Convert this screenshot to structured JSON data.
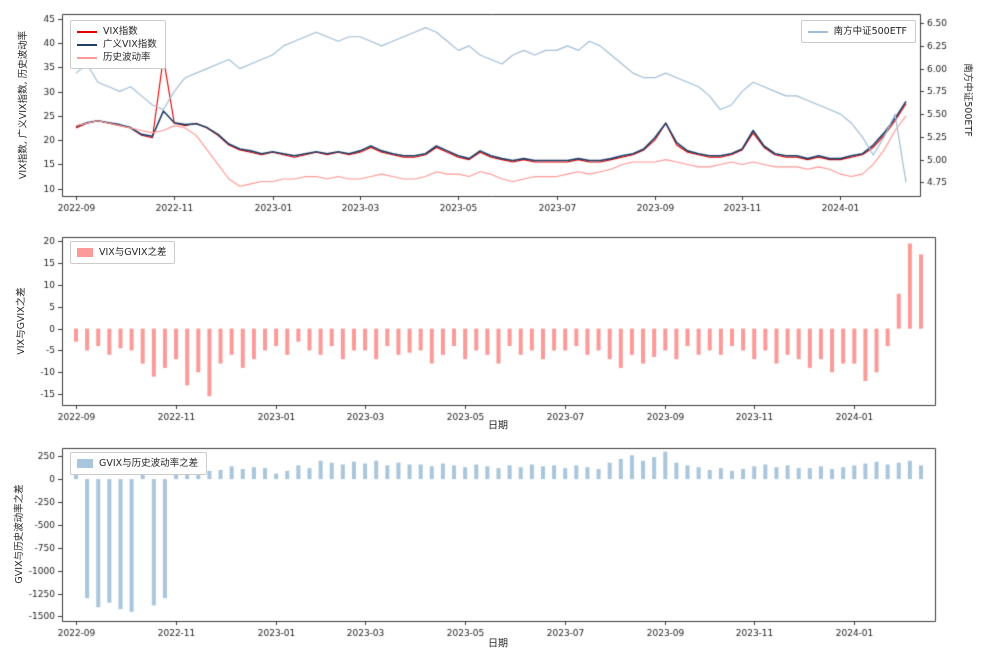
{
  "figure": {
    "background": "#ffffff"
  },
  "x_dates": [
    "2022-09-01",
    "2022-09-08",
    "2022-09-15",
    "2022-09-22",
    "2022-09-29",
    "2022-10-06",
    "2022-10-13",
    "2022-10-20",
    "2022-10-27",
    "2022-11-03",
    "2022-11-10",
    "2022-11-17",
    "2022-11-24",
    "2022-12-01",
    "2022-12-08",
    "2022-12-15",
    "2022-12-22",
    "2022-12-29",
    "2023-01-05",
    "2023-01-12",
    "2023-01-19",
    "2023-01-26",
    "2023-02-02",
    "2023-02-09",
    "2023-02-16",
    "2023-02-23",
    "2023-03-02",
    "2023-03-09",
    "2023-03-16",
    "2023-03-23",
    "2023-03-30",
    "2023-04-06",
    "2023-04-13",
    "2023-04-20",
    "2023-04-27",
    "2023-05-04",
    "2023-05-11",
    "2023-05-18",
    "2023-05-25",
    "2023-06-01",
    "2023-06-08",
    "2023-06-15",
    "2023-06-22",
    "2023-06-29",
    "2023-07-06",
    "2023-07-13",
    "2023-07-20",
    "2023-07-27",
    "2023-08-03",
    "2023-08-10",
    "2023-08-17",
    "2023-08-24",
    "2023-08-31",
    "2023-09-07",
    "2023-09-14",
    "2023-09-21",
    "2023-09-28",
    "2023-10-05",
    "2023-10-12",
    "2023-10-19",
    "2023-10-26",
    "2023-11-02",
    "2023-11-09",
    "2023-11-16",
    "2023-11-23",
    "2023-11-30",
    "2023-12-07",
    "2023-12-14",
    "2023-12-21",
    "2023-12-28",
    "2024-01-04",
    "2024-01-11",
    "2024-01-18",
    "2024-01-25",
    "2024-02-01",
    "2024-02-08",
    "2024-02-15"
  ],
  "x_ticks": {
    "labels": [
      "2022-09",
      "2022-11",
      "2023-01",
      "2023-03",
      "2023-05",
      "2023-07",
      "2023-09",
      "2023-11",
      "2024-01"
    ],
    "indices": [
      0,
      9,
      18,
      26,
      35,
      44,
      53,
      61,
      70
    ]
  },
  "chart_data": [
    {
      "type": "line",
      "ylabel_left": "VIX指数, 广义VIX指数, 历史波动率",
      "ylabel_right": "南方中证500ETF",
      "yticks_left": [
        "45",
        "40",
        "35",
        "30",
        "25",
        "20",
        "15",
        "10"
      ],
      "ylim_left": [
        8.5,
        46
      ],
      "yticks_right": [
        "6.50",
        "6.25",
        "6.00",
        "5.75",
        "5.50",
        "5.25",
        "5.00",
        "4.75"
      ],
      "ylim_right": [
        4.6,
        6.6
      ],
      "series": [
        {
          "name": "VIX指数",
          "color": "#e50000",
          "axis": "left",
          "values": [
            22.5,
            23.5,
            24.0,
            23.5,
            23.0,
            22.5,
            21.0,
            20.5,
            37.0,
            23.5,
            23.0,
            23.5,
            22.5,
            21.0,
            19.0,
            18.0,
            17.5,
            17.0,
            17.5,
            17.0,
            16.5,
            17.0,
            17.5,
            17.0,
            17.5,
            17.0,
            17.5,
            18.5,
            17.5,
            17.0,
            16.5,
            16.5,
            17.0,
            18.5,
            17.5,
            16.5,
            16.0,
            17.5,
            16.5,
            16.0,
            15.5,
            16.0,
            15.5,
            15.5,
            15.5,
            15.5,
            16.0,
            15.5,
            15.5,
            16.0,
            16.5,
            17.0,
            18.0,
            20.0,
            23.5,
            19.0,
            17.5,
            17.0,
            16.5,
            16.5,
            17.0,
            18.0,
            21.5,
            18.5,
            17.0,
            16.5,
            16.5,
            16.0,
            16.5,
            16.0,
            16.0,
            16.5,
            17.0,
            18.5,
            21.0,
            24.0,
            27.5
          ]
        },
        {
          "name": "广义VIX指数",
          "color": "#1e3f66",
          "axis": "left",
          "values": [
            22.8,
            23.6,
            24.0,
            23.6,
            23.2,
            22.6,
            21.2,
            20.8,
            26.0,
            23.6,
            23.2,
            23.4,
            22.6,
            21.2,
            19.2,
            18.2,
            17.8,
            17.2,
            17.6,
            17.2,
            16.8,
            17.2,
            17.6,
            17.2,
            17.6,
            17.2,
            17.8,
            18.8,
            17.8,
            17.2,
            16.8,
            16.8,
            17.2,
            18.8,
            17.8,
            16.8,
            16.2,
            17.8,
            16.8,
            16.2,
            15.8,
            16.2,
            15.8,
            15.8,
            15.8,
            15.8,
            16.2,
            15.8,
            15.8,
            16.2,
            16.8,
            17.2,
            18.2,
            20.5,
            23.5,
            19.5,
            17.8,
            17.2,
            16.8,
            16.8,
            17.2,
            18.2,
            22.0,
            18.8,
            17.2,
            16.8,
            16.8,
            16.2,
            16.8,
            16.2,
            16.2,
            16.8,
            17.2,
            19.0,
            21.5,
            24.5,
            28.0
          ]
        },
        {
          "name": "历史波动率",
          "color": "#ff9896",
          "axis": "left",
          "values": [
            23.0,
            23.5,
            24.0,
            23.5,
            23.0,
            22.5,
            22.0,
            21.5,
            22.0,
            23.0,
            22.5,
            21.0,
            18.0,
            15.0,
            12.0,
            10.5,
            11.0,
            11.5,
            11.5,
            12.0,
            12.0,
            12.5,
            12.5,
            12.0,
            12.5,
            12.0,
            12.0,
            12.5,
            13.0,
            12.5,
            12.0,
            12.0,
            12.5,
            13.5,
            13.0,
            13.0,
            12.5,
            13.5,
            13.0,
            12.0,
            11.5,
            12.0,
            12.5,
            12.5,
            12.5,
            13.0,
            13.5,
            13.0,
            13.5,
            14.0,
            15.0,
            15.5,
            15.5,
            15.5,
            16.0,
            15.5,
            15.0,
            14.5,
            14.5,
            15.0,
            15.5,
            15.0,
            15.5,
            15.0,
            14.5,
            14.5,
            14.5,
            14.0,
            14.5,
            14.0,
            13.0,
            12.5,
            13.0,
            15.0,
            18.0,
            22.0,
            25.0
          ]
        },
        {
          "name": "南方中证500ETF",
          "color": "#a3bfd8",
          "axis": "right",
          "values": [
            5.95,
            6.05,
            5.85,
            5.8,
            5.75,
            5.8,
            5.7,
            5.6,
            5.55,
            5.75,
            5.9,
            5.95,
            6.0,
            6.05,
            6.1,
            6.0,
            6.05,
            6.1,
            6.15,
            6.25,
            6.3,
            6.35,
            6.4,
            6.35,
            6.3,
            6.35,
            6.35,
            6.3,
            6.25,
            6.3,
            6.35,
            6.4,
            6.45,
            6.4,
            6.3,
            6.2,
            6.25,
            6.15,
            6.1,
            6.05,
            6.15,
            6.2,
            6.15,
            6.2,
            6.2,
            6.25,
            6.2,
            6.3,
            6.25,
            6.15,
            6.05,
            5.95,
            5.9,
            5.9,
            5.95,
            5.9,
            5.85,
            5.8,
            5.7,
            5.55,
            5.6,
            5.75,
            5.85,
            5.8,
            5.75,
            5.7,
            5.7,
            5.65,
            5.6,
            5.55,
            5.5,
            5.4,
            5.25,
            5.05,
            5.25,
            5.5,
            4.75
          ]
        }
      ]
    },
    {
      "type": "bar",
      "legend": "VIX与GVIX之差",
      "color": "#fb9a99",
      "ylabel": "VIX与GVIX之差",
      "xlabel": "日期",
      "yticks": [
        "20",
        "15",
        "10",
        "5",
        "0",
        "-5",
        "-10",
        "-15"
      ],
      "ylim": [
        -17.5,
        21
      ],
      "values": [
        -3.0,
        -5.0,
        -4.0,
        -6.0,
        -4.5,
        -5.0,
        -8.0,
        -11.0,
        -9.0,
        -7.0,
        -13.0,
        -10.0,
        -15.5,
        -8.0,
        -6.0,
        -9.0,
        -7.0,
        -5.0,
        -4.0,
        -6.0,
        -3.0,
        -5.0,
        -6.0,
        -4.0,
        -7.0,
        -5.0,
        -5.0,
        -7.0,
        -4.0,
        -6.0,
        -5.5,
        -5.0,
        -8.0,
        -6.0,
        -4.0,
        -7.0,
        -5.0,
        -6.0,
        -8.0,
        -4.0,
        -6.0,
        -5.0,
        -7.0,
        -5.0,
        -5.0,
        -4.0,
        -6.0,
        -5.0,
        -7.0,
        -9.0,
        -6.0,
        -8.0,
        -6.5,
        -5.0,
        -7.0,
        -4.0,
        -6.0,
        -5.0,
        -6.0,
        -4.0,
        -5.0,
        -7.0,
        -5.0,
        -8.0,
        -6.0,
        -7.0,
        -9.0,
        -7.0,
        -10.0,
        -8.0,
        -8.0,
        -12.0,
        -10.0,
        -4.0,
        8.0,
        19.5,
        17.0
      ]
    },
    {
      "type": "bar",
      "legend": "GVIX与历史波动率之差",
      "color": "#a9c6dc",
      "ylabel": "GVIX与历史波动率之差",
      "xlabel": "日期",
      "yticks": [
        "250",
        "0",
        "-250",
        "-500",
        "-750",
        "-1000",
        "-1250",
        "-1500"
      ],
      "ylim": [
        -1550,
        340
      ],
      "values": [
        120,
        -1300,
        -1400,
        -1350,
        -1420,
        -1450,
        100,
        -1380,
        -1300,
        150,
        120,
        180,
        90,
        100,
        140,
        110,
        130,
        120,
        60,
        90,
        150,
        120,
        200,
        180,
        160,
        190,
        170,
        200,
        150,
        180,
        160,
        160,
        140,
        170,
        150,
        130,
        160,
        140,
        120,
        150,
        130,
        160,
        140,
        150,
        120,
        150,
        130,
        110,
        180,
        220,
        260,
        200,
        240,
        300,
        180,
        150,
        130,
        100,
        120,
        90,
        110,
        140,
        160,
        130,
        150,
        120,
        120,
        140,
        110,
        130,
        150,
        170,
        190,
        160,
        180,
        200,
        150
      ]
    }
  ]
}
